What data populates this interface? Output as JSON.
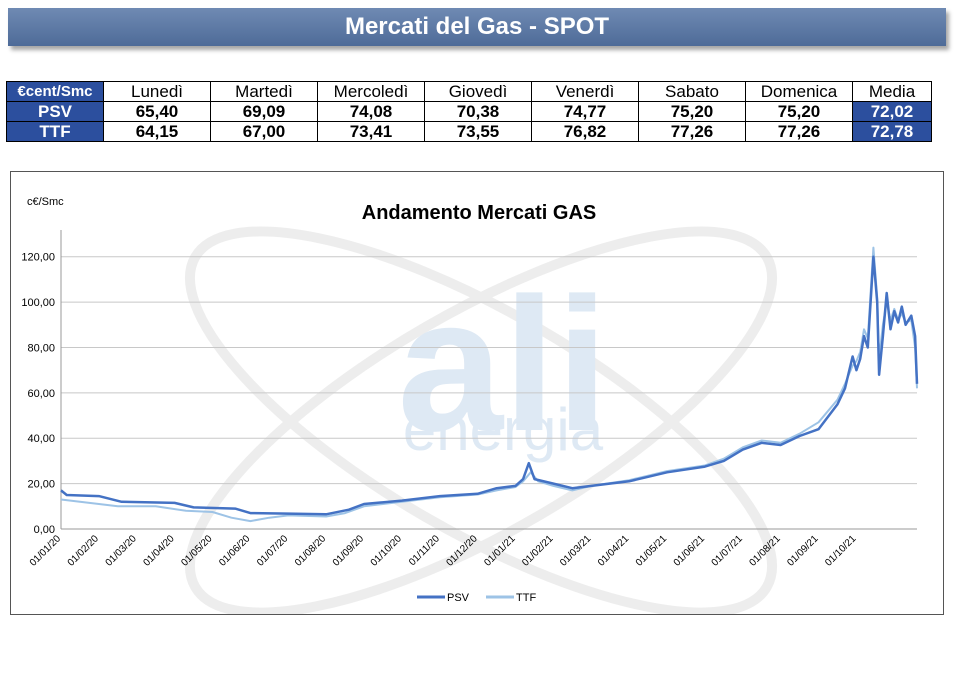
{
  "banner": {
    "title": "Mercati del Gas - SPOT"
  },
  "table": {
    "unit": "€cent/Smc",
    "days": [
      "Lunedì",
      "Martedì",
      "Mercoledì",
      "Giovedì",
      "Venerdì",
      "Sabato",
      "Domenica"
    ],
    "avg_label": "Media",
    "rows": [
      {
        "name": "PSV",
        "values": [
          "65,40",
          "69,09",
          "74,08",
          "70,38",
          "74,77",
          "75,20",
          "75,20"
        ],
        "avg": "72,02"
      },
      {
        "name": "TTF",
        "values": [
          "64,15",
          "67,00",
          "73,41",
          "73,55",
          "76,82",
          "77,26",
          "77,26"
        ],
        "avg": "72,78"
      }
    ]
  },
  "watermark": {
    "logo_text": "ali",
    "sub_text": "energia"
  },
  "chart_data": {
    "type": "line",
    "title": "Andamento Mercati GAS",
    "ylabel": "c€/Smc",
    "ylim": [
      0,
      130
    ],
    "yticks": [
      "0,00",
      "20,00",
      "40,00",
      "60,00",
      "80,00",
      "100,00",
      "120,00"
    ],
    "ytick_values": [
      0,
      20,
      40,
      60,
      80,
      100,
      120
    ],
    "xticks": [
      "01/01/20",
      "01/02/20",
      "01/03/20",
      "01/04/20",
      "01/05/20",
      "01/06/20",
      "01/07/20",
      "01/08/20",
      "01/09/20",
      "01/10/20",
      "01/11/20",
      "01/12/20",
      "01/01/21",
      "01/02/21",
      "01/03/21",
      "01/04/21",
      "01/05/21",
      "01/06/21",
      "01/07/21",
      "01/08/21",
      "01/09/21",
      "01/10/21"
    ],
    "x_range_months": [
      0,
      22.6
    ],
    "legend_position": "bottom",
    "grid": true,
    "series": [
      {
        "name": "PSV",
        "color": "#4472c4",
        "points": [
          [
            0,
            17
          ],
          [
            0.15,
            15
          ],
          [
            1,
            14.5
          ],
          [
            1.6,
            12
          ],
          [
            3,
            11.5
          ],
          [
            3.5,
            9.5
          ],
          [
            4.6,
            9
          ],
          [
            5,
            7
          ],
          [
            6,
            6.8
          ],
          [
            7,
            6.5
          ],
          [
            7.6,
            8.5
          ],
          [
            8,
            11
          ],
          [
            9,
            12.5
          ],
          [
            10,
            14.5
          ],
          [
            11,
            15.5
          ],
          [
            11.5,
            18
          ],
          [
            12,
            19
          ],
          [
            12.2,
            22
          ],
          [
            12.35,
            29
          ],
          [
            12.5,
            22
          ],
          [
            13,
            20
          ],
          [
            13.5,
            18
          ],
          [
            14,
            19
          ],
          [
            15,
            21
          ],
          [
            15.5,
            23
          ],
          [
            16,
            25
          ],
          [
            17,
            27.5
          ],
          [
            17.5,
            30
          ],
          [
            18,
            35
          ],
          [
            18.5,
            38
          ],
          [
            19,
            37
          ],
          [
            19.5,
            41
          ],
          [
            20,
            44
          ],
          [
            20.5,
            55
          ],
          [
            20.7,
            62
          ],
          [
            20.9,
            76
          ],
          [
            21,
            70
          ],
          [
            21.1,
            75
          ],
          [
            21.2,
            85
          ],
          [
            21.3,
            80
          ],
          [
            21.45,
            120
          ],
          [
            21.55,
            100
          ],
          [
            21.6,
            68
          ],
          [
            21.7,
            85
          ],
          [
            21.8,
            104
          ],
          [
            21.9,
            88
          ],
          [
            22,
            96
          ],
          [
            22.1,
            91
          ],
          [
            22.2,
            98
          ],
          [
            22.3,
            90
          ],
          [
            22.45,
            94
          ],
          [
            22.55,
            85
          ],
          [
            22.6,
            64
          ]
        ]
      },
      {
        "name": "TTF",
        "color": "#9dc3e6",
        "points": [
          [
            0,
            13
          ],
          [
            0.5,
            12
          ],
          [
            1,
            11
          ],
          [
            1.5,
            10
          ],
          [
            2.5,
            10
          ],
          [
            3.3,
            8
          ],
          [
            4,
            7.5
          ],
          [
            4.5,
            5
          ],
          [
            5,
            3.5
          ],
          [
            5.5,
            5
          ],
          [
            6,
            6
          ],
          [
            7,
            5.5
          ],
          [
            7.5,
            7
          ],
          [
            8,
            10
          ],
          [
            9,
            12
          ],
          [
            10,
            14
          ],
          [
            11,
            15.2
          ],
          [
            11.5,
            17
          ],
          [
            12,
            18.5
          ],
          [
            12.2,
            21
          ],
          [
            12.4,
            25
          ],
          [
            12.6,
            21
          ],
          [
            13,
            19
          ],
          [
            13.5,
            17
          ],
          [
            14,
            19
          ],
          [
            15,
            21.5
          ],
          [
            15.5,
            23.5
          ],
          [
            16,
            25.5
          ],
          [
            17,
            28
          ],
          [
            17.5,
            31
          ],
          [
            18,
            36
          ],
          [
            18.5,
            39
          ],
          [
            19,
            38
          ],
          [
            19.5,
            42
          ],
          [
            20,
            47
          ],
          [
            20.5,
            57
          ],
          [
            20.7,
            64
          ],
          [
            20.9,
            72
          ],
          [
            21,
            74
          ],
          [
            21.1,
            78
          ],
          [
            21.2,
            88
          ],
          [
            21.3,
            84
          ],
          [
            21.45,
            124
          ],
          [
            21.55,
            102
          ],
          [
            21.6,
            75
          ],
          [
            21.7,
            90
          ],
          [
            21.8,
            100
          ],
          [
            21.9,
            92
          ],
          [
            22,
            97
          ],
          [
            22.1,
            92
          ],
          [
            22.2,
            95
          ],
          [
            22.3,
            91
          ],
          [
            22.45,
            92
          ],
          [
            22.55,
            80
          ],
          [
            22.6,
            62
          ]
        ]
      }
    ]
  }
}
